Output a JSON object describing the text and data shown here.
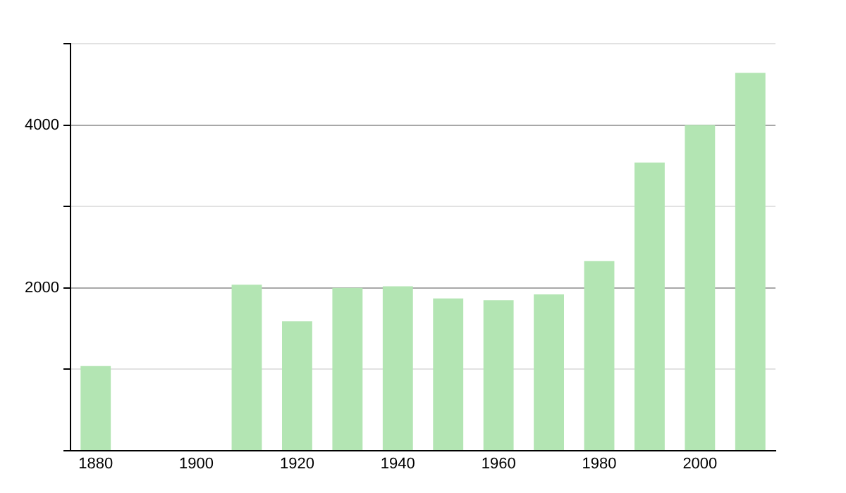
{
  "chart_data": {
    "type": "bar",
    "categories": [
      "1880",
      null,
      "1900",
      null,
      "1920",
      null,
      "1940",
      null,
      "1960",
      null,
      "1980",
      null,
      "2000",
      null
    ],
    "values": [
      1040,
      null,
      null,
      2040,
      1590,
      2000,
      2020,
      1870,
      1850,
      1920,
      2330,
      3540,
      4000,
      4640
    ],
    "color": "#b3e5b3",
    "ylim": [
      0,
      5000
    ],
    "yticks": [
      {
        "value": 0,
        "label": null
      },
      {
        "value": 1000,
        "label": null
      },
      2000,
      {
        "value": 3000,
        "label": null
      },
      4000,
      {
        "value": 5000,
        "label": null
      }
    ],
    "grid": "y"
  }
}
